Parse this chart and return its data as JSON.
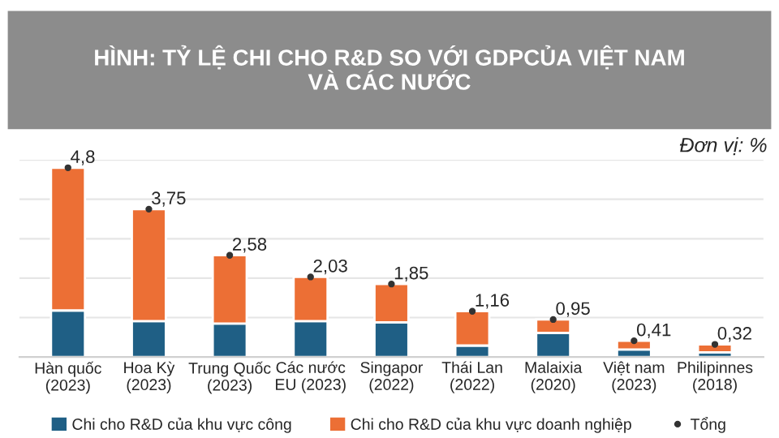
{
  "chart_data": {
    "type": "bar",
    "stacked": true,
    "title": "HÌNH: TỶ LỆ CHI CHO R&D SO VỚI GDPCỦA VIỆT NAM\nVÀ CÁC NƯỚC",
    "annotations": [
      "Đơn vị: %"
    ],
    "categories": [
      "Hàn quốc\n(2023)",
      "Hoa Kỳ\n(2023)",
      "Trung Quốc\n(2023)",
      "Các nước\nEU (2023)",
      "Singapor\n(2022)",
      "Thái Lan\n(2022)",
      "Malaixia\n(2020)",
      "Việt nam\n(2023)",
      "Philipinnes\n(2018)"
    ],
    "series": [
      {
        "name": "Chi cho R&D của khu vực công",
        "color": "#1f5f85",
        "values": [
          1.18,
          0.91,
          0.85,
          0.91,
          0.88,
          0.29,
          0.61,
          0.19,
          0.12
        ]
      },
      {
        "name": "Chi cho R&D của khu vực doanh nghiệp",
        "color": "#ec6f35",
        "values": [
          3.62,
          2.84,
          1.73,
          1.12,
          0.97,
          0.87,
          0.34,
          0.22,
          0.2
        ]
      },
      {
        "name": "Tổng",
        "type": "scatter",
        "color": "#333333",
        "marker": "circle",
        "values": [
          4.8,
          3.75,
          2.58,
          2.03,
          1.85,
          1.16,
          0.95,
          0.41,
          0.32
        ],
        "value_labels": [
          "4,8",
          "3,75",
          "2,58",
          "2,03",
          "1,85",
          "1,16",
          "0,95",
          "0,41",
          "0,32"
        ]
      }
    ],
    "ylim": [
      0,
      5
    ],
    "yticks": [
      {
        "value": 1,
        "label": null
      },
      {
        "value": 2,
        "label": null
      },
      {
        "value": 3,
        "label": null
      },
      {
        "value": 4,
        "label": null
      },
      {
        "value": 5,
        "label": null
      }
    ],
    "tick_labels": "x",
    "grid": "y",
    "legend": "bottom"
  }
}
